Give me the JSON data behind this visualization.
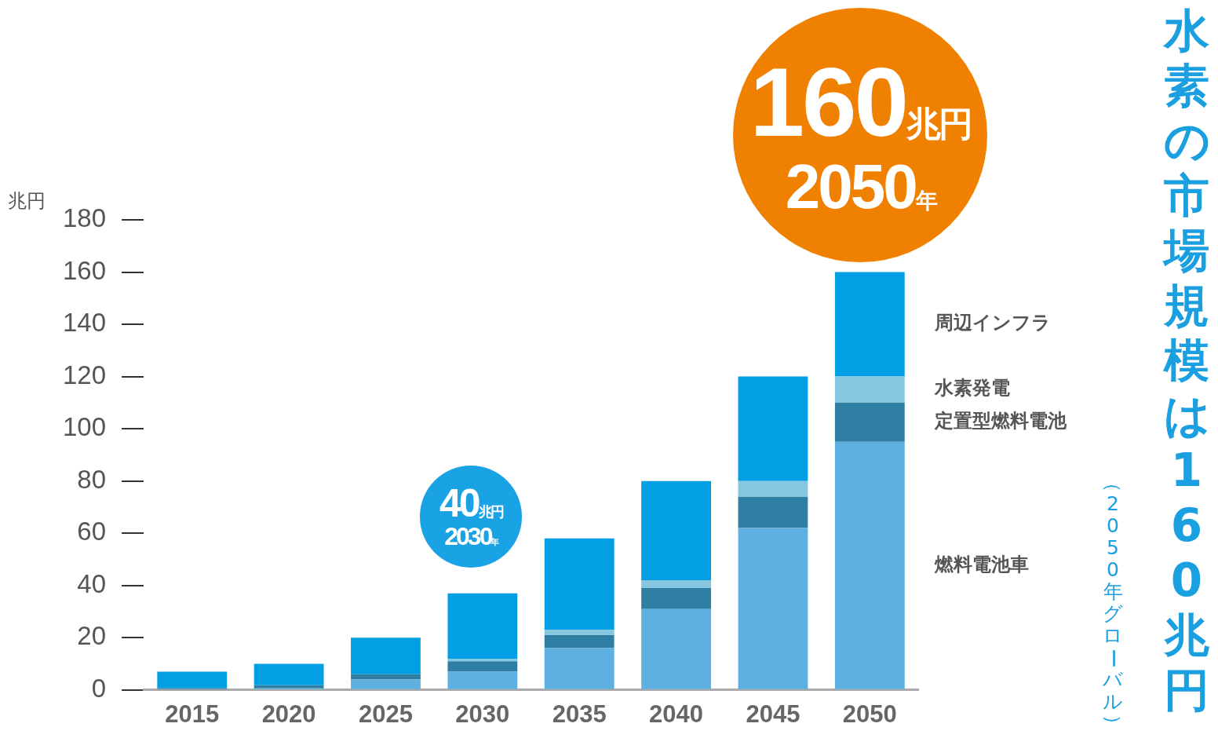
{
  "chart_data": {
    "type": "bar",
    "stacked": true,
    "title": "水素の市場規模は160兆円",
    "subtitle": "（2050年グローバル）",
    "ylabel": "兆円",
    "categories": [
      "2015",
      "2020",
      "2025",
      "2030",
      "2035",
      "2040",
      "2045",
      "2050"
    ],
    "series": [
      {
        "name": "燃料電池車",
        "color": "#5db0e0",
        "values": [
          0,
          0.6,
          4,
          7,
          16,
          31,
          62,
          95
        ]
      },
      {
        "name": "定置型燃料電池",
        "color": "#2f7fa5",
        "values": [
          0.7,
          1.2,
          2,
          4,
          5,
          8,
          12,
          15
        ]
      },
      {
        "name": "水素発電",
        "color": "#86c6df",
        "values": [
          0,
          0,
          0,
          1,
          2,
          3,
          6,
          10
        ]
      },
      {
        "name": "周辺インフラ",
        "color": "#039fe5",
        "values": [
          6.3,
          8.2,
          14,
          25,
          35,
          38,
          40,
          40
        ]
      }
    ],
    "ylim": [
      0,
      180
    ],
    "yticks": [
      0,
      20,
      40,
      60,
      80,
      100,
      120,
      140,
      160,
      180
    ],
    "grid": false,
    "annotations": [
      "160兆円",
      "2050年",
      "40兆円",
      "2030年"
    ]
  }
}
